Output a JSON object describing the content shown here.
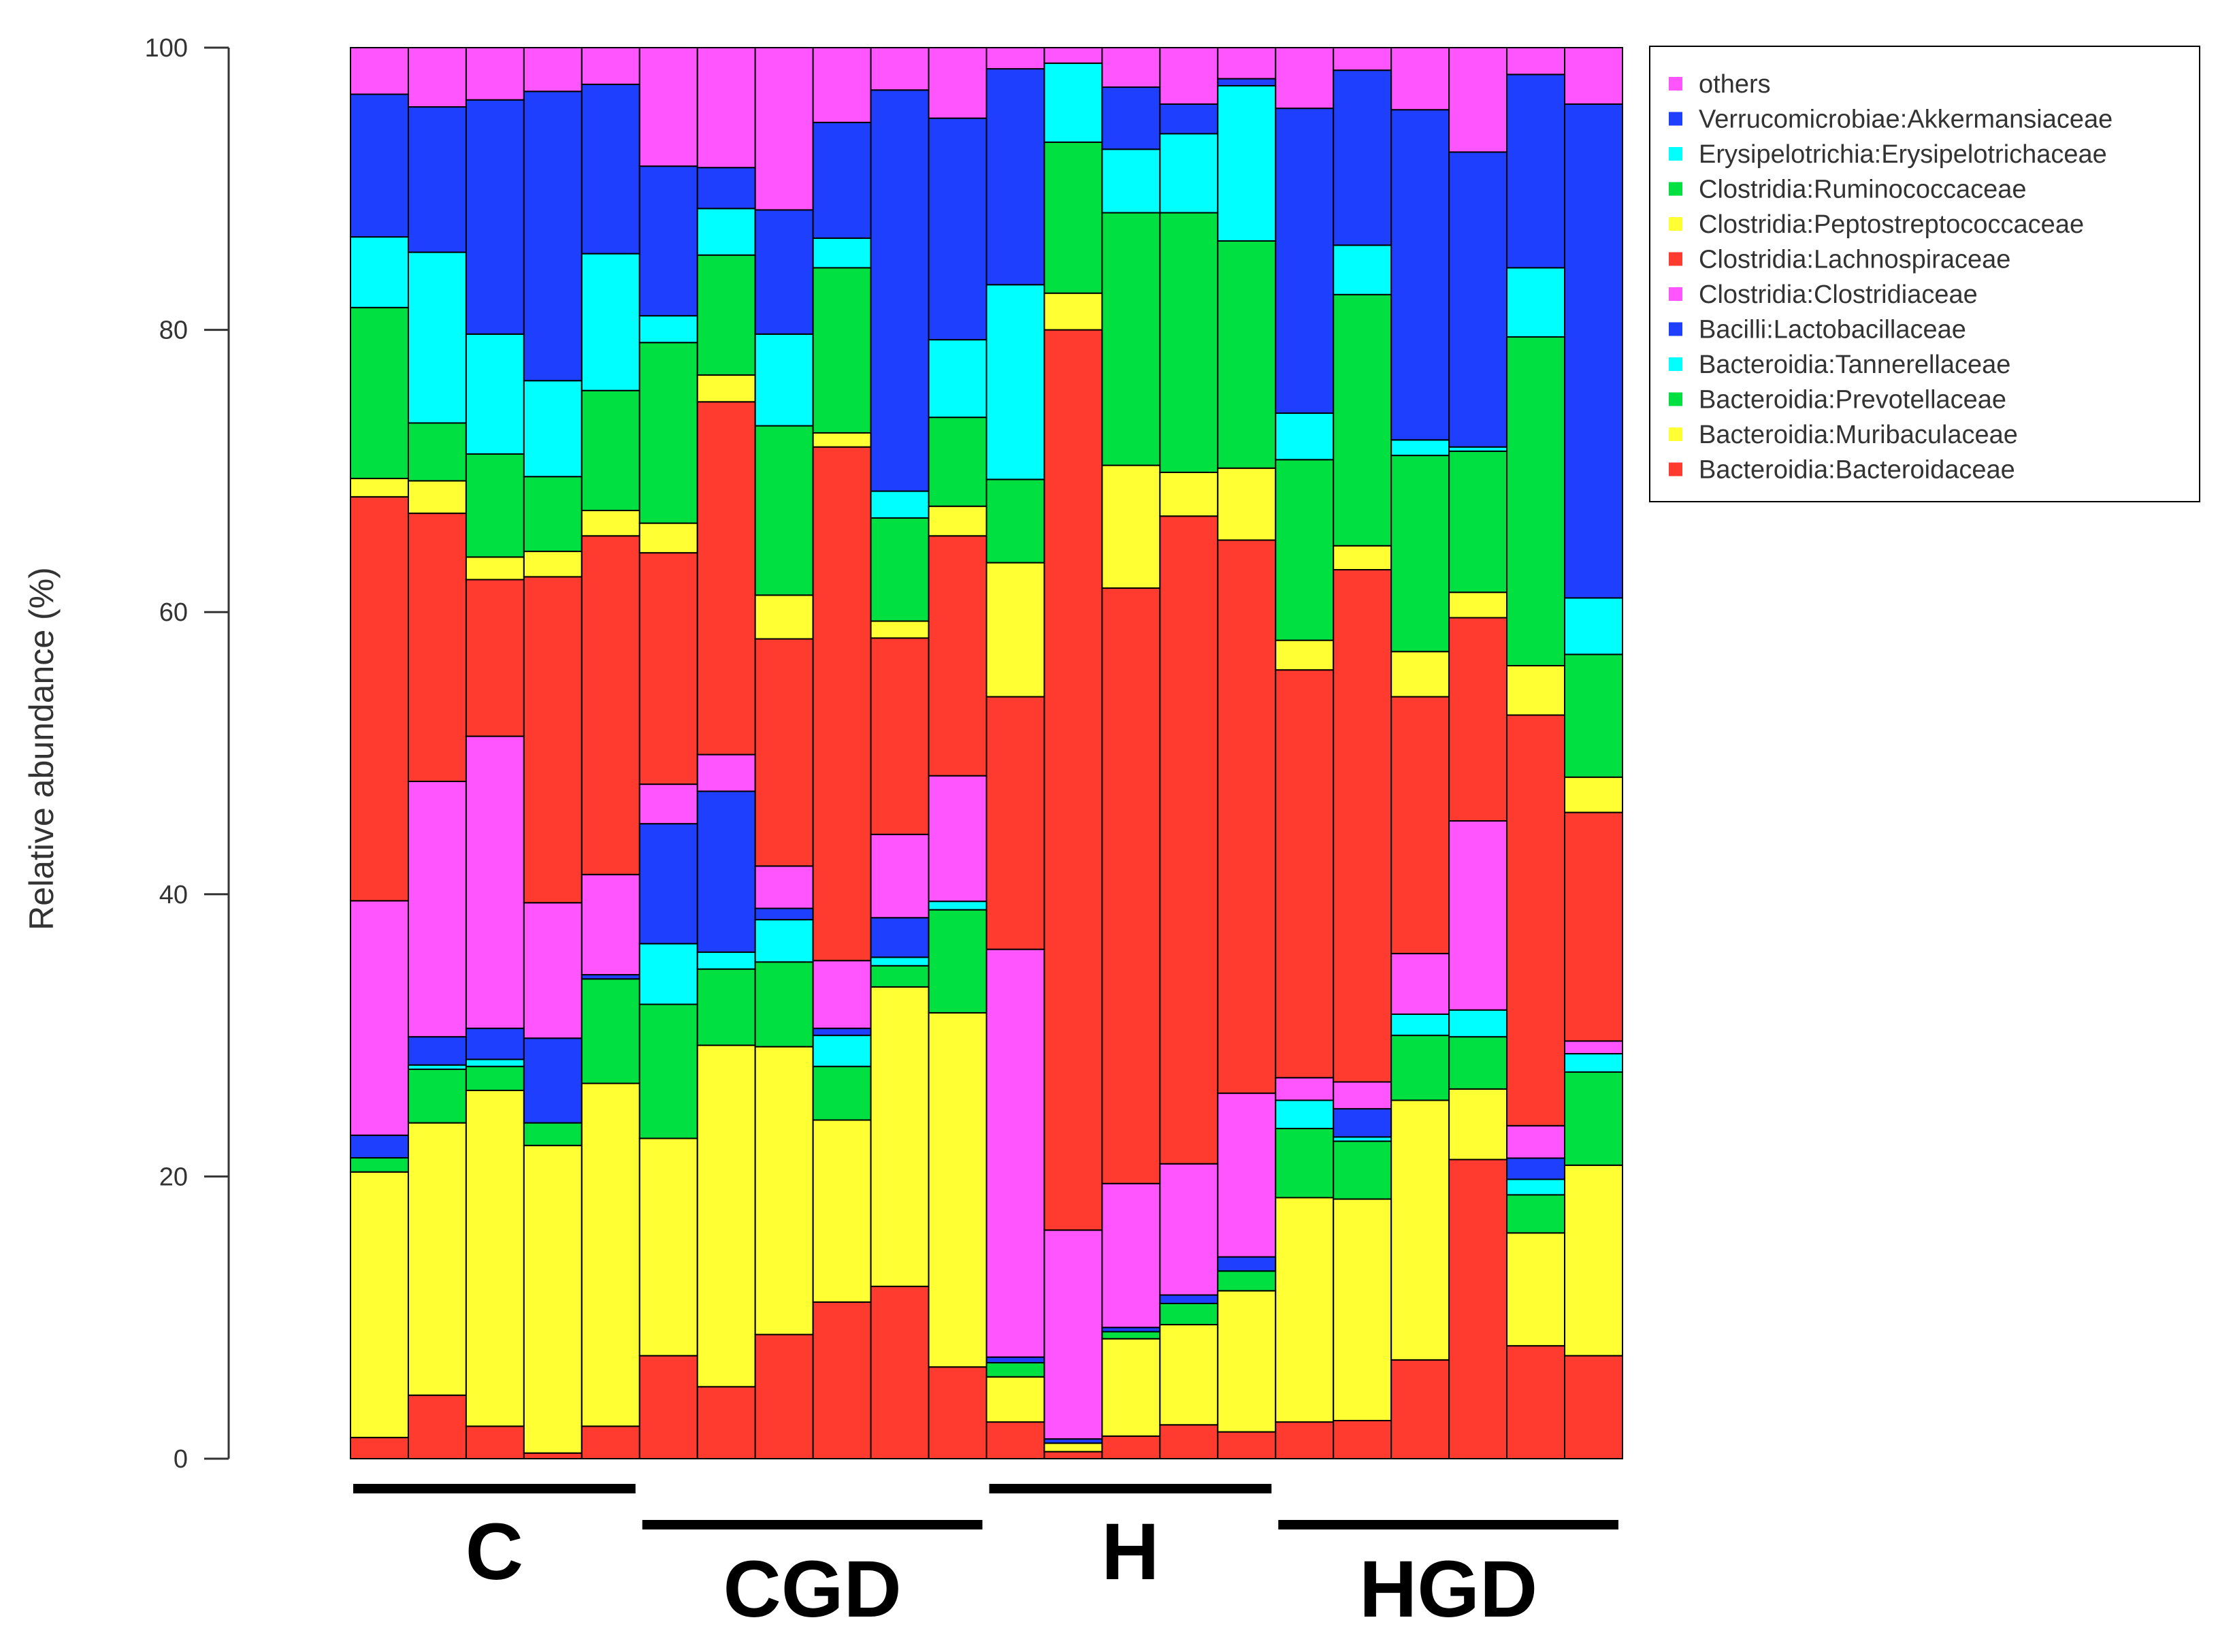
{
  "chart_data": {
    "type": "bar",
    "stacked": true,
    "title": "",
    "xlabel": "",
    "ylabel": "Relative abundance (%)",
    "ylim": [
      0,
      100
    ],
    "yticks": [
      0,
      20,
      40,
      60,
      80,
      100
    ],
    "grid": false,
    "legend_position": "top-right",
    "series_colors": {
      "others": "#ff55ff",
      "Verrucomicrobiae:Akkermansiaceae": "#1f3fff",
      "Erysipelotrichia:Erysipelotrichaceae": "#00ffff",
      "Clostridia:Ruminococcaceae": "#00e040",
      "Clostridia:Peptostreptococcaceae": "#ffff33",
      "Clostridia:Lachnospiraceae": "#ff3b30",
      "Clostridia:Clostridiaceae": "#ff55ff",
      "Bacilli:Lactobacillaceae": "#1f3fff",
      "Bacteroidia:Tannerellaceae": "#00ffff",
      "Bacteroidia:Prevotellaceae": "#00e040",
      "Bacteroidia:Muribaculaceae": "#ffff33",
      "Bacteroidia:Bacteroidaceae": "#ff3b30"
    },
    "legend": [
      "others",
      "Verrucomicrobiae:Akkermansiaceae",
      "Erysipelotrichia:Erysipelotrichaceae",
      "Clostridia:Ruminococcaceae",
      "Clostridia:Peptostreptococcaceae",
      "Clostridia:Lachnospiraceae",
      "Clostridia:Clostridiaceae",
      "Bacilli:Lactobacillaceae",
      "Bacteroidia:Tannerellaceae",
      "Bacteroidia:Prevotellaceae",
      "Bacteroidia:Muribaculaceae",
      "Bacteroidia:Bacteroidaceae"
    ],
    "stack_order": [
      "Bacteroidia:Bacteroidaceae",
      "Bacteroidia:Muribaculaceae",
      "Bacteroidia:Prevotellaceae",
      "Bacteroidia:Tannerellaceae",
      "Bacilli:Lactobacillaceae",
      "Clostridia:Clostridiaceae",
      "Clostridia:Lachnospiraceae",
      "Clostridia:Peptostreptococcaceae",
      "Clostridia:Ruminococcaceae",
      "Erysipelotrichia:Erysipelotrichaceae",
      "Verrucomicrobiae:Akkermansiaceae",
      "others"
    ],
    "samples": [
      {
        "group": "C",
        "values": [
          1.5,
          18.8,
          1.0,
          0,
          1.6,
          16.6,
          28.6,
          1.3,
          12.1,
          5.0,
          10.1,
          3.3
        ]
      },
      {
        "group": "C",
        "values": [
          4.5,
          19.3,
          3.8,
          0.3,
          2.0,
          18.1,
          19.0,
          2.3,
          4.1,
          12.1,
          10.3,
          4.2
        ]
      },
      {
        "group": "C",
        "values": [
          2.3,
          23.8,
          1.7,
          0.5,
          2.2,
          20.7,
          11.1,
          1.6,
          7.3,
          8.5,
          16.6,
          3.7
        ]
      },
      {
        "group": "C",
        "values": [
          0.4,
          21.8,
          1.6,
          0,
          6.0,
          9.6,
          23.1,
          1.8,
          5.3,
          6.8,
          20.5,
          3.1
        ]
      },
      {
        "group": "C",
        "values": [
          2.3,
          24.3,
          7.4,
          0,
          0.3,
          7.1,
          24.0,
          1.8,
          8.5,
          9.7,
          12.0,
          2.6
        ]
      },
      {
        "group": "CGD",
        "values": [
          7.3,
          15.4,
          9.5,
          4.3,
          8.5,
          2.8,
          16.4,
          2.1,
          12.8,
          1.9,
          10.6,
          8.4
        ]
      },
      {
        "group": "CGD",
        "values": [
          5.1,
          24.2,
          5.4,
          1.2,
          11.4,
          2.6,
          25.0,
          1.9,
          8.5,
          3.3,
          2.9,
          8.5
        ]
      },
      {
        "group": "CGD",
        "values": [
          8.8,
          20.4,
          6.0,
          3.0,
          0.8,
          3.0,
          16.1,
          3.1,
          12.0,
          6.5,
          8.8,
          11.5
        ]
      },
      {
        "group": "CGD",
        "values": [
          11.1,
          12.9,
          3.8,
          2.2,
          0.5,
          4.8,
          36.4,
          1.0,
          11.7,
          2.1,
          8.2,
          5.3
        ]
      },
      {
        "group": "CGD",
        "values": [
          12.2,
          21.2,
          1.5,
          0.6,
          2.8,
          5.9,
          13.9,
          1.2,
          7.3,
          1.9,
          28.4,
          3.0
        ]
      },
      {
        "group": "CGD",
        "values": [
          6.5,
          25.1,
          7.3,
          0.6,
          0,
          8.9,
          17.0,
          2.1,
          6.3,
          5.5,
          15.7,
          5.0
        ]
      },
      {
        "group": "H",
        "values": [
          2.6,
          3.2,
          1.0,
          0,
          0.4,
          28.9,
          17.9,
          9.5,
          5.9,
          13.8,
          15.3,
          1.5
        ]
      },
      {
        "group": "H",
        "values": [
          0.5,
          0.6,
          0,
          0,
          0.3,
          14.8,
          63.8,
          2.6,
          10.7,
          5.6,
          0,
          1.1
        ]
      },
      {
        "group": "H",
        "values": [
          1.6,
          6.9,
          0.5,
          0,
          0.3,
          10.2,
          42.2,
          8.7,
          17.9,
          4.5,
          4.4,
          2.8
        ]
      },
      {
        "group": "H",
        "values": [
          2.4,
          7.1,
          1.5,
          0,
          0.6,
          9.3,
          45.9,
          3.1,
          18.4,
          5.6,
          2.1,
          4.0
        ]
      },
      {
        "group": "H",
        "values": [
          1.9,
          10.0,
          1.4,
          0,
          1.0,
          11.6,
          39.2,
          5.1,
          16.1,
          11.0,
          0.5,
          2.2
        ]
      },
      {
        "group": "HGD",
        "values": [
          2.6,
          15.9,
          4.9,
          2.0,
          0,
          1.6,
          28.9,
          2.1,
          12.8,
          3.3,
          21.6,
          4.3
        ]
      },
      {
        "group": "HGD",
        "values": [
          2.7,
          15.7,
          4.1,
          0.3,
          2.0,
          1.9,
          36.3,
          1.7,
          17.8,
          3.5,
          12.4,
          1.6
        ]
      },
      {
        "group": "HGD",
        "values": [
          7.0,
          18.4,
          4.6,
          1.5,
          0,
          4.3,
          18.2,
          3.2,
          13.9,
          1.1,
          23.4,
          4.4
        ]
      },
      {
        "group": "HGD",
        "values": [
          21.2,
          5.0,
          3.7,
          1.9,
          0,
          13.4,
          14.4,
          1.8,
          10.0,
          0.3,
          20.9,
          7.4
        ]
      },
      {
        "group": "HGD",
        "values": [
          8.0,
          8.0,
          2.7,
          1.1,
          1.5,
          2.3,
          29.1,
          3.5,
          23.3,
          4.9,
          13.7,
          1.9
        ]
      },
      {
        "group": "HGD",
        "values": [
          7.3,
          13.5,
          6.6,
          1.3,
          0,
          0.9,
          16.2,
          2.5,
          8.7,
          4.0,
          35.0,
          4.0
        ]
      }
    ],
    "groups": [
      {
        "label": "C",
        "first_sample": 0,
        "last_sample": 4
      },
      {
        "label": "CGD",
        "first_sample": 5,
        "last_sample": 10
      },
      {
        "label": "H",
        "first_sample": 11,
        "last_sample": 15
      },
      {
        "label": "HGD",
        "first_sample": 16,
        "last_sample": 21
      }
    ]
  }
}
